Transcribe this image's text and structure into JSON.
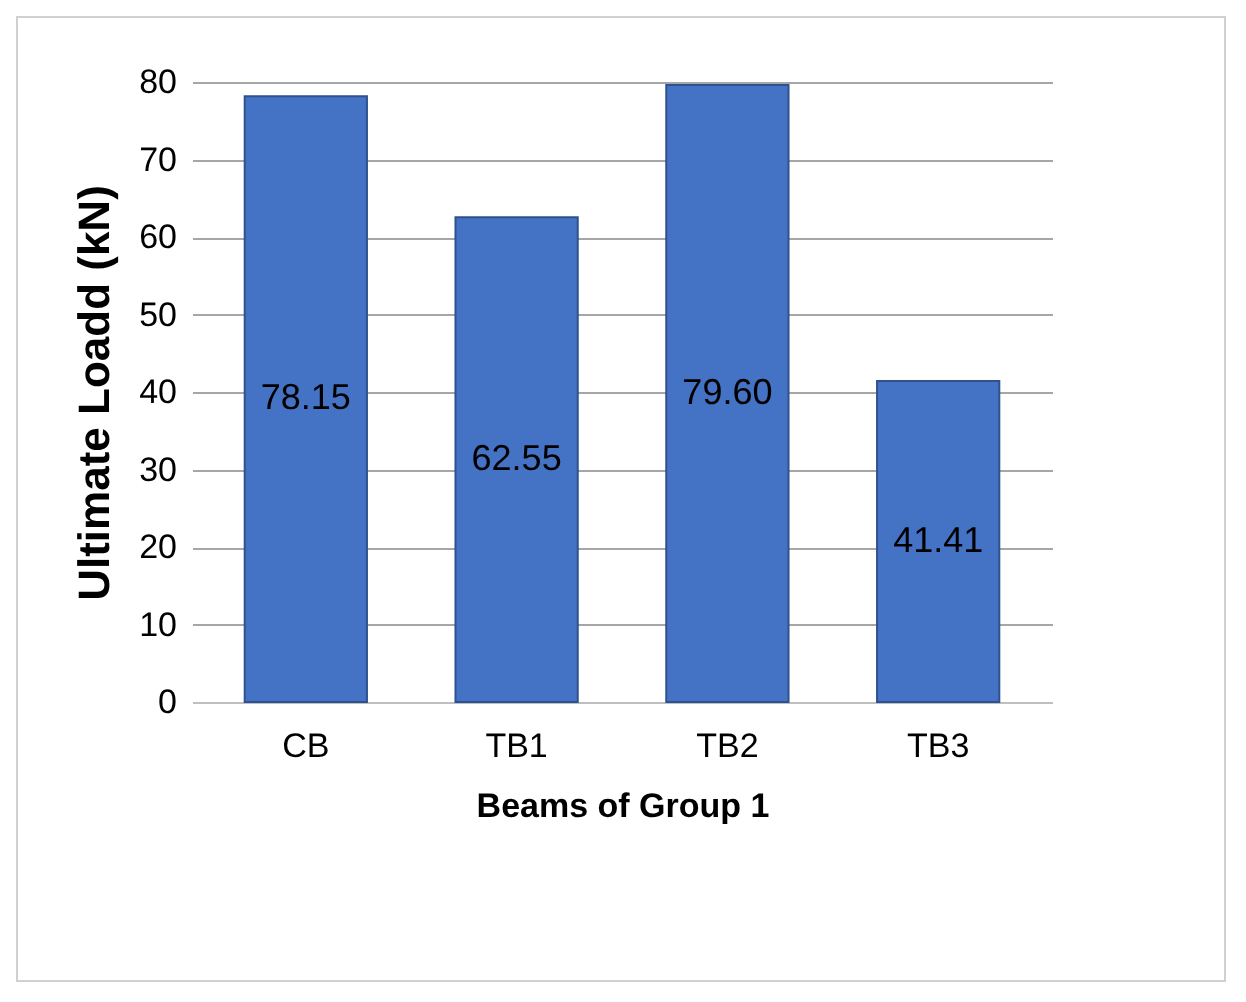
{
  "chart_data": {
    "type": "bar",
    "xlabel": "Beams of Group 1",
    "ylabel": "Ultimate Loadd (kN)",
    "categories": [
      "CB",
      "TB1",
      "TB2",
      "TB3"
    ],
    "values": [
      78.15,
      62.55,
      79.6,
      41.41
    ],
    "value_labels": [
      "78.15",
      "62.55",
      "79.60",
      "41.41"
    ],
    "color": "#4472c4",
    "ylim": [
      0,
      80
    ],
    "yticks": [
      0,
      10,
      20,
      30,
      40,
      50,
      60,
      70,
      80
    ],
    "grid": "y"
  }
}
